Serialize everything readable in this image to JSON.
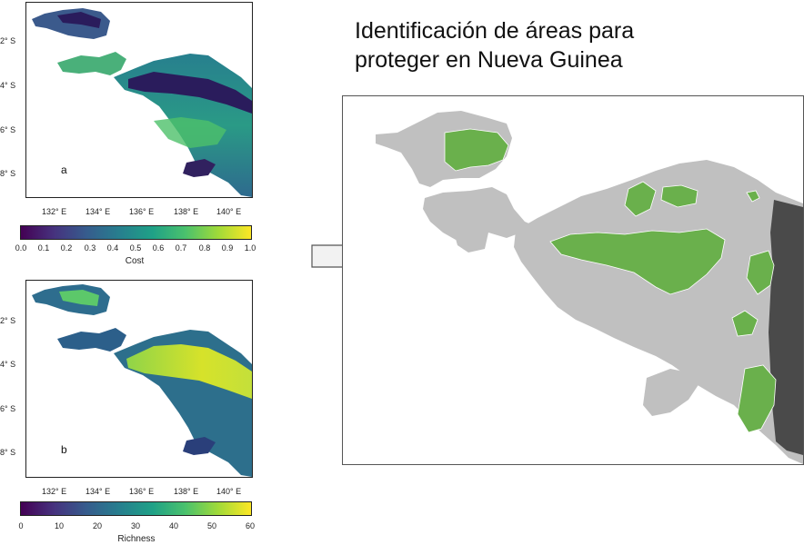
{
  "title": {
    "line1": "Identificación de áreas para",
    "line2": "proteger en Nueva Guinea"
  },
  "colors": {
    "viridis": [
      "#440154",
      "#46327e",
      "#365c8d",
      "#277f8e",
      "#1fa187",
      "#4ac16d",
      "#a0da39",
      "#fde725"
    ],
    "land_gray": "#c0c0c0",
    "selected_green": "#6ab04c",
    "boundary_dark": "#4a4a4a"
  },
  "chart_data": [
    {
      "type": "heatmap",
      "panel_label": "a",
      "x_ticks": [
        "132° E",
        "134° E",
        "136° E",
        "138° E",
        "140° E"
      ],
      "y_ticks": [
        "2° S",
        "4° S",
        "6° S",
        "8° S"
      ],
      "colorbar": {
        "title": "Cost",
        "range": [
          0,
          1
        ],
        "ticks": [
          "0.0",
          "0.1",
          "0.2",
          "0.3",
          "0.4",
          "0.5",
          "0.6",
          "0.7",
          "0.8",
          "0.9",
          "1.0"
        ]
      }
    },
    {
      "type": "heatmap",
      "panel_label": "b",
      "x_ticks": [
        "132° E",
        "134° E",
        "136° E",
        "138° E",
        "140° E"
      ],
      "y_ticks": [
        "2° S",
        "4° S",
        "6° S",
        "8° S"
      ],
      "colorbar": {
        "title": "Richness",
        "range": [
          0,
          60
        ],
        "ticks": [
          "0",
          "10",
          "20",
          "30",
          "40",
          "50",
          "60"
        ]
      }
    }
  ]
}
